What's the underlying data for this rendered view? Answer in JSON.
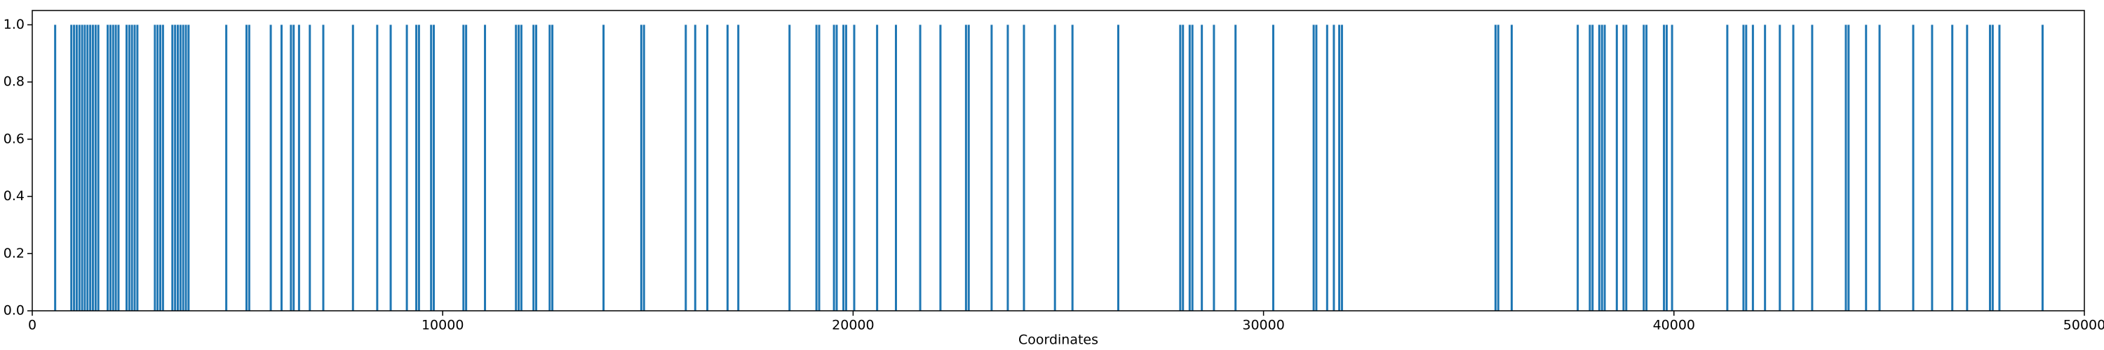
{
  "chart_data": {
    "type": "bar",
    "xlabel": "Coordinates",
    "color": "#1f77b4",
    "x": [
      558,
      952,
      1018,
      1083,
      1149,
      1215,
      1280,
      1346,
      1412,
      1477,
      1543,
      1609,
      1838,
      1904,
      1970,
      2035,
      2101,
      2298,
      2364,
      2429,
      2495,
      2561,
      2988,
      3053,
      3119,
      3185,
      3414,
      3480,
      3546,
      3611,
      3677,
      3743,
      3808,
      4727,
      5220,
      5286,
      5811,
      6074,
      6303,
      6369,
      6500,
      6763,
      7091,
      7814,
      8405,
      8733,
      9127,
      9357,
      9422,
      9718,
      9783,
      10506,
      10571,
      11031,
      11786,
      11852,
      11917,
      12213,
      12278,
      12607,
      12672,
      13919,
      14839,
      14905,
      15923,
      16153,
      16448,
      16941,
      17203,
      18451,
      19107,
      19173,
      19534,
      19600,
      19764,
      19830,
      20027,
      20585,
      21044,
      21635,
      22128,
      22751,
      22817,
      23375,
      23769,
      24163,
      24918,
      25345,
      26461,
      27971,
      28037,
      28201,
      28267,
      28497,
      28792,
      29318,
      30237,
      31222,
      31287,
      31550,
      31714,
      31845,
      31911,
      35653,
      35719,
      36047,
      37656,
      37951,
      38017,
      38181,
      38247,
      38313,
      38608,
      38772,
      38838,
      39265,
      39330,
      39757,
      39823,
      39954,
      41300,
      41694,
      41760,
      41924,
      42219,
      42580,
      42908,
      43368,
      44189,
      44255,
      44681,
      45010,
      45830,
      46290,
      46782,
      47143,
      47701,
      47767,
      47931,
      48982
    ],
    "values": [
      1,
      1,
      1,
      1,
      1,
      1,
      1,
      1,
      1,
      1,
      1,
      1,
      1,
      1,
      1,
      1,
      1,
      1,
      1,
      1,
      1,
      1,
      1,
      1,
      1,
      1,
      1,
      1,
      1,
      1,
      1,
      1,
      1,
      1,
      1,
      1,
      1,
      1,
      1,
      1,
      1,
      1,
      1,
      1,
      1,
      1,
      1,
      1,
      1,
      1,
      1,
      1,
      1,
      1,
      1,
      1,
      1,
      1,
      1,
      1,
      1,
      1,
      1,
      1,
      1,
      1,
      1,
      1,
      1,
      1,
      1,
      1,
      1,
      1,
      1,
      1,
      1,
      1,
      1,
      1,
      1,
      1,
      1,
      1,
      1,
      1,
      1,
      1,
      1,
      1,
      1,
      1,
      1,
      1,
      1,
      1,
      1,
      1,
      1,
      1,
      1,
      1,
      1,
      1,
      1,
      1,
      1,
      1,
      1,
      1,
      1,
      1,
      1,
      1,
      1,
      1,
      1,
      1,
      1,
      1,
      1,
      1,
      1,
      1,
      1,
      1,
      1,
      1,
      1,
      1,
      1,
      1,
      1,
      1,
      1,
      1,
      1,
      1,
      1,
      1
    ],
    "xlim": [
      0,
      50000
    ],
    "xticks": [
      0,
      10000,
      20000,
      30000,
      40000,
      50000
    ],
    "ylim": [
      0,
      1.05
    ],
    "yticks": [
      {
        "value": 0,
        "label": "0.0"
      },
      {
        "value": 0.2,
        "label": "0.2"
      },
      {
        "value": 0.4,
        "label": "0.4"
      },
      {
        "value": 0.6,
        "label": "0.6"
      },
      {
        "value": 0.8,
        "label": "0.8"
      },
      {
        "value": 1,
        "label": "1.0"
      }
    ]
  }
}
